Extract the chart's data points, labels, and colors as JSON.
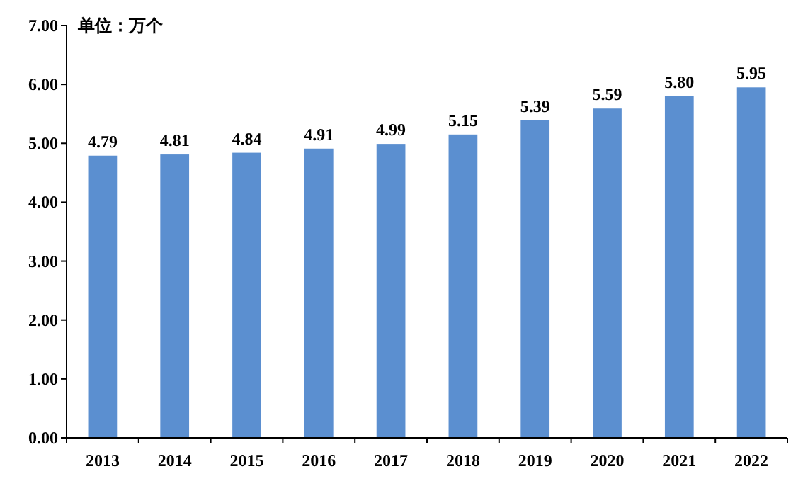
{
  "chart_data": {
    "type": "bar",
    "annotations": [
      "单位：万个"
    ],
    "categories": [
      "2013",
      "2014",
      "2015",
      "2016",
      "2017",
      "2018",
      "2019",
      "2020",
      "2021",
      "2022"
    ],
    "values": [
      4.79,
      4.81,
      4.84,
      4.91,
      4.99,
      5.15,
      5.39,
      5.59,
      5.8,
      5.95
    ],
    "color": "#5b8fd0",
    "data_labels": true,
    "value_labels": [
      "4.79",
      "4.81",
      "4.84",
      "4.91",
      "4.99",
      "5.15",
      "5.39",
      "5.59",
      "5.80",
      "5.95"
    ],
    "ylim": [
      0,
      7
    ],
    "yticks": [
      {
        "value": 0,
        "label": "0.00"
      },
      {
        "value": 1,
        "label": "1.00"
      },
      {
        "value": 2,
        "label": "2.00"
      },
      {
        "value": 3,
        "label": "3.00"
      },
      {
        "value": 4,
        "label": "4.00"
      },
      {
        "value": 5,
        "label": "5.00"
      },
      {
        "value": 6,
        "label": "6.00"
      },
      {
        "value": 7,
        "label": "7.00"
      }
    ]
  }
}
